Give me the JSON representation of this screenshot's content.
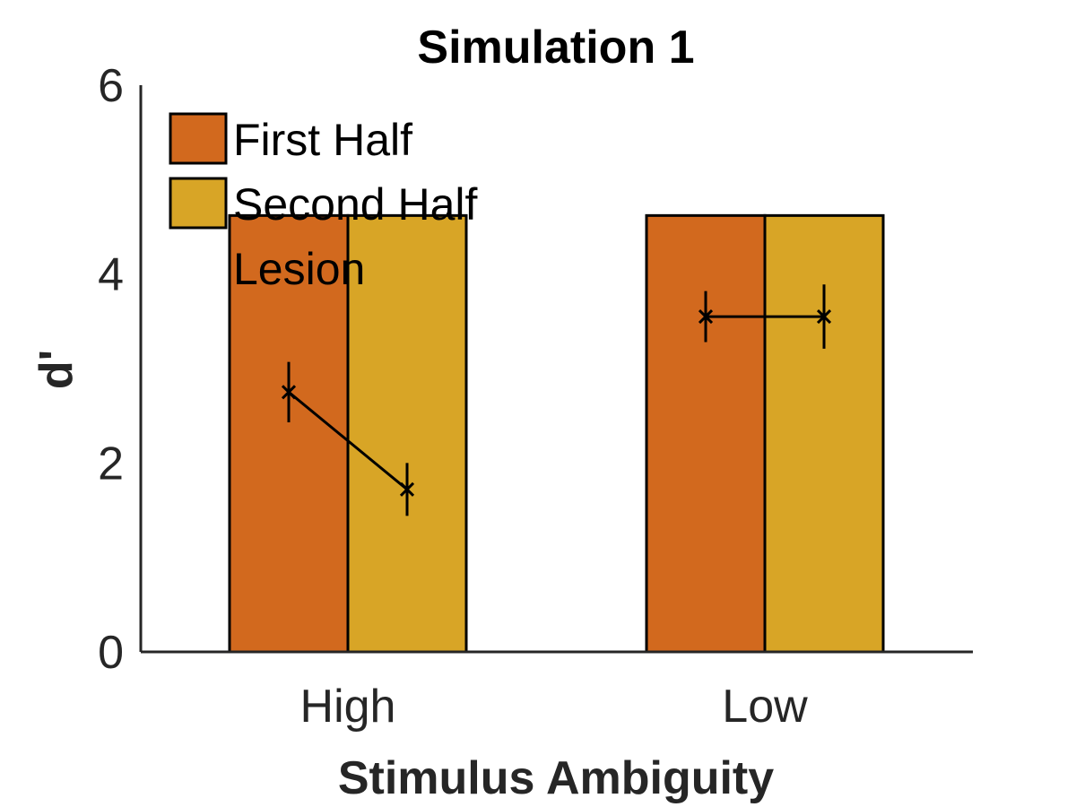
{
  "chart_data": {
    "type": "bar",
    "title": "Simulation 1",
    "xlabel": "Stimulus Ambiguity",
    "ylabel": "d'",
    "categories": [
      "High",
      "Low"
    ],
    "ylim": [
      0,
      6
    ],
    "yticks": [
      0,
      2,
      4,
      6
    ],
    "grid": false,
    "legend_position": "top-left",
    "series": [
      {
        "name": "First Half",
        "color": "#D2691E",
        "values": [
          4.62,
          4.62
        ]
      },
      {
        "name": "Second Half",
        "color": "#D8A526",
        "values": [
          4.62,
          4.62
        ]
      }
    ],
    "lesion": {
      "name": "Lesion",
      "marker": "x",
      "color": "#000000",
      "groups": [
        {
          "category": "High",
          "values": [
            2.75,
            1.72
          ],
          "errors": [
            0.32,
            0.28
          ]
        },
        {
          "category": "Low",
          "values": [
            3.55,
            3.55
          ],
          "errors": [
            0.27,
            0.34
          ]
        }
      ]
    }
  }
}
